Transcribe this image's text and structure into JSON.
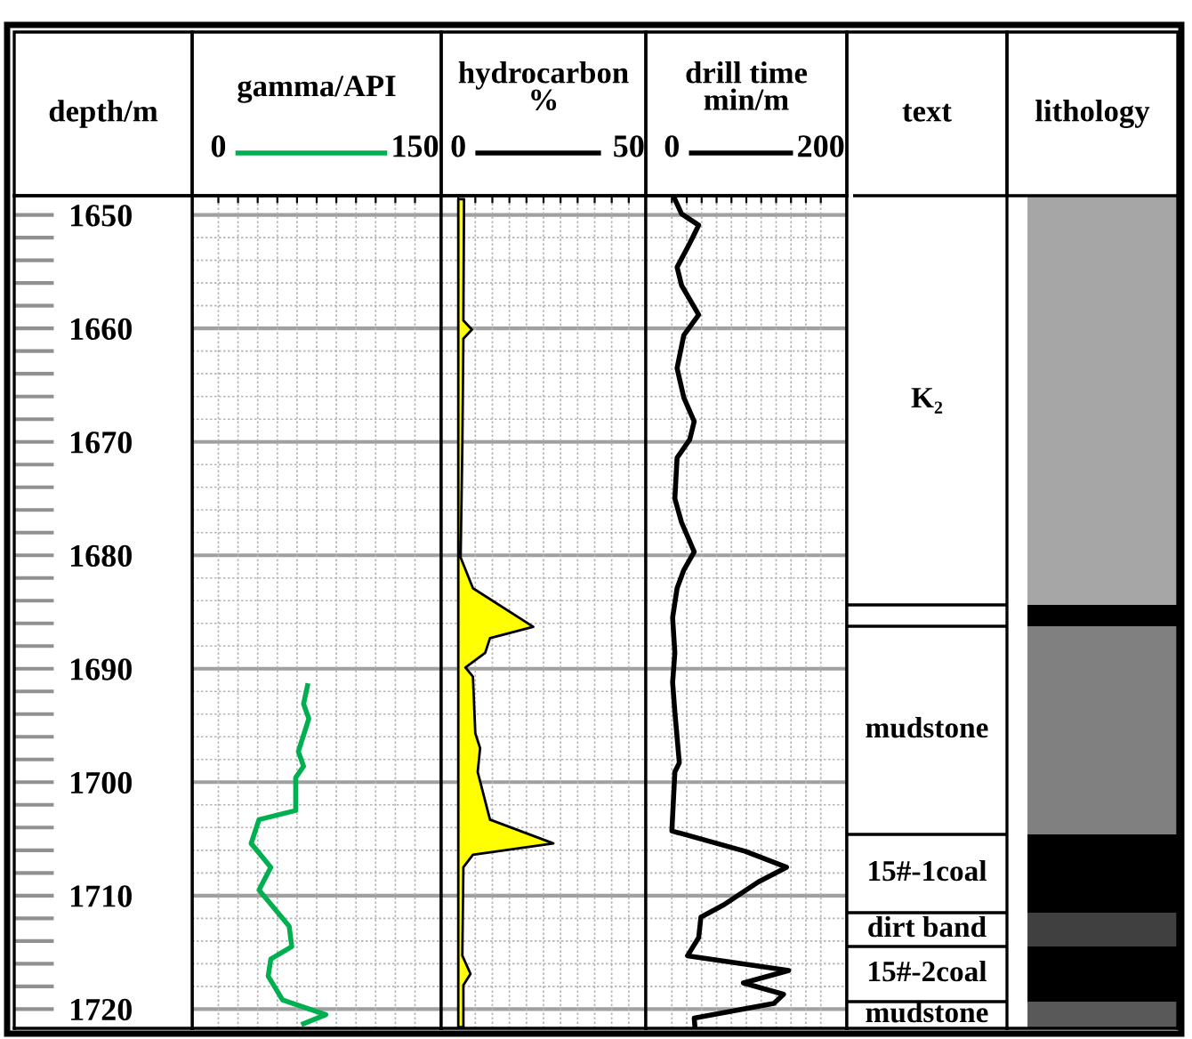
{
  "chart_data": [
    {
      "type": "line",
      "orientation": "horizontal",
      "xlabel": "gamma/API",
      "ylabel": "depth/m",
      "xlim": [
        -20,
        170
      ],
      "xticks": [
        0,
        {
          "value": 15,
          "label": null
        },
        {
          "value": 30,
          "label": null
        },
        {
          "value": 45,
          "label": null
        },
        {
          "value": 60,
          "label": null
        },
        {
          "value": 75,
          "label": null
        },
        {
          "value": 90,
          "label": null
        },
        {
          "value": 105,
          "label": null
        },
        {
          "value": 120,
          "label": null
        },
        {
          "value": 135,
          "label": null
        },
        150
      ],
      "ylim": [
        1721.7,
        1648.3
      ],
      "yticks": [
        1650,
        {
          "value": 1652,
          "label": null
        },
        {
          "value": 1654,
          "label": null
        },
        {
          "value": 1656,
          "label": null
        },
        {
          "value": 1658,
          "label": null
        },
        1660,
        {
          "value": 1662,
          "label": null
        },
        {
          "value": 1664,
          "label": null
        },
        {
          "value": 1666,
          "label": null
        },
        {
          "value": 1668,
          "label": null
        },
        1670,
        {
          "value": 1672,
          "label": null
        },
        {
          "value": 1674,
          "label": null
        },
        {
          "value": 1676,
          "label": null
        },
        {
          "value": 1678,
          "label": null
        },
        1680,
        {
          "value": 1682,
          "label": null
        },
        {
          "value": 1684,
          "label": null
        },
        {
          "value": 1686,
          "label": null
        },
        {
          "value": 1688,
          "label": null
        },
        1690,
        {
          "value": 1692,
          "label": null
        },
        {
          "value": 1694,
          "label": null
        },
        {
          "value": 1696,
          "label": null
        },
        {
          "value": 1698,
          "label": null
        },
        1700,
        {
          "value": 1702,
          "label": null
        },
        {
          "value": 1704,
          "label": null
        },
        {
          "value": 1706,
          "label": null
        },
        {
          "value": 1708,
          "label": null
        },
        1710,
        {
          "value": 1712,
          "label": null
        },
        {
          "value": 1714,
          "label": null
        },
        {
          "value": 1716,
          "label": null
        },
        {
          "value": 1718,
          "label": null
        },
        1720
      ],
      "grid": true,
      "series": [
        {
          "color": "#00b050",
          "x": [
            1691.5,
            1693.1,
            1694.4,
            1697.3,
            1698.6,
            1699.6,
            1702.5,
            1703.3,
            1705.4,
            1707.5,
            1709.5,
            1712.7,
            1714.5,
            1715.6,
            1717.1,
            1719.2,
            1720.5,
            1721.3
          ],
          "values": [
            68,
            65,
            69,
            61,
            65,
            59,
            59,
            31,
            25,
            40,
            31,
            54,
            56,
            40,
            38,
            49,
            82,
            65
          ]
        }
      ]
    },
    {
      "type": "area",
      "orientation": "horizontal",
      "xlabel": "hydrocarbon\n%",
      "tick_labels": "x",
      "xlim": [
        -5,
        55
      ],
      "xticks": [
        0,
        {
          "value": 5,
          "label": null
        },
        {
          "value": 10,
          "label": null
        },
        {
          "value": 15,
          "label": null
        },
        {
          "value": 20,
          "label": null
        },
        {
          "value": 25,
          "label": null
        },
        {
          "value": 30,
          "label": null
        },
        {
          "value": 35,
          "label": null
        },
        {
          "value": 40,
          "label": null
        },
        {
          "value": 45,
          "label": null
        },
        50
      ],
      "ylim": [
        1721.7,
        1648.3
      ],
      "yticks": [
        1650,
        {
          "value": 1652,
          "label": null
        },
        {
          "value": 1654,
          "label": null
        },
        {
          "value": 1656,
          "label": null
        },
        {
          "value": 1658,
          "label": null
        },
        1660,
        {
          "value": 1662,
          "label": null
        },
        {
          "value": 1664,
          "label": null
        },
        {
          "value": 1666,
          "label": null
        },
        {
          "value": 1668,
          "label": null
        },
        1670,
        {
          "value": 1672,
          "label": null
        },
        {
          "value": 1674,
          "label": null
        },
        {
          "value": 1676,
          "label": null
        },
        {
          "value": 1678,
          "label": null
        },
        1680,
        {
          "value": 1682,
          "label": null
        },
        {
          "value": 1684,
          "label": null
        },
        {
          "value": 1686,
          "label": null
        },
        {
          "value": 1688,
          "label": null
        },
        1690,
        {
          "value": 1692,
          "label": null
        },
        {
          "value": 1694,
          "label": null
        },
        {
          "value": 1696,
          "label": null
        },
        {
          "value": 1698,
          "label": null
        },
        1700,
        {
          "value": 1702,
          "label": null
        },
        {
          "value": 1704,
          "label": null
        },
        {
          "value": 1706,
          "label": null
        },
        {
          "value": 1708,
          "label": null
        },
        1710,
        {
          "value": 1712,
          "label": null
        },
        {
          "value": 1714,
          "label": null
        },
        {
          "value": 1716,
          "label": null
        },
        {
          "value": 1718,
          "label": null
        },
        1720
      ],
      "grid": true,
      "series": [
        {
          "color": "#ffff00",
          "x": [
            1648.6,
            1659.3,
            1660.1,
            1660.9,
            1670.3,
            1680.2,
            1682.9,
            1686.3,
            1687.3,
            1688.6,
            1689.9,
            1690.7,
            1695.7,
            1697,
            1699.1,
            1703.3,
            1705.4,
            1706.4,
            1707.5,
            1715.3,
            1716.9,
            1717.9,
            1721.6
          ],
          "values": [
            1.7,
            1.5,
            4,
            1.5,
            1.2,
            0.7,
            4.3,
            22,
            9.3,
            7.9,
            2.1,
            4.3,
            5,
            6.4,
            5.7,
            9.3,
            27.9,
            4.3,
            1.5,
            1.2,
            3.6,
            1.5,
            1.5
          ]
        }
      ]
    },
    {
      "type": "line",
      "orientation": "horizontal",
      "xlabel": "drill time\nmin/m",
      "tick_labels": "x",
      "xlim": [
        -35,
        235
      ],
      "xticks": [
        0,
        {
          "value": 20,
          "label": null
        },
        {
          "value": 40,
          "label": null
        },
        {
          "value": 60,
          "label": null
        },
        {
          "value": 80,
          "label": null
        },
        {
          "value": 100,
          "label": null
        },
        {
          "value": 120,
          "label": null
        },
        {
          "value": 140,
          "label": null
        },
        {
          "value": 160,
          "label": null
        },
        {
          "value": 180,
          "label": null
        },
        200
      ],
      "ylim": [
        1721.7,
        1648.3
      ],
      "yticks": [
        1650,
        {
          "value": 1652,
          "label": null
        },
        {
          "value": 1654,
          "label": null
        },
        {
          "value": 1656,
          "label": null
        },
        {
          "value": 1658,
          "label": null
        },
        1660,
        {
          "value": 1662,
          "label": null
        },
        {
          "value": 1664,
          "label": null
        },
        {
          "value": 1666,
          "label": null
        },
        {
          "value": 1668,
          "label": null
        },
        1670,
        {
          "value": 1672,
          "label": null
        },
        {
          "value": 1674,
          "label": null
        },
        {
          "value": 1676,
          "label": null
        },
        {
          "value": 1678,
          "label": null
        },
        1680,
        {
          "value": 1682,
          "label": null
        },
        {
          "value": 1684,
          "label": null
        },
        {
          "value": 1686,
          "label": null
        },
        {
          "value": 1688,
          "label": null
        },
        1690,
        {
          "value": 1692,
          "label": null
        },
        {
          "value": 1694,
          "label": null
        },
        {
          "value": 1696,
          "label": null
        },
        {
          "value": 1698,
          "label": null
        },
        1700,
        {
          "value": 1702,
          "label": null
        },
        {
          "value": 1704,
          "label": null
        },
        {
          "value": 1706,
          "label": null
        },
        {
          "value": 1708,
          "label": null
        },
        1710,
        {
          "value": 1712,
          "label": null
        },
        {
          "value": 1714,
          "label": null
        },
        {
          "value": 1716,
          "label": null
        },
        {
          "value": 1718,
          "label": null
        },
        1720
      ],
      "grid": true,
      "series": [
        {
          "color": "#000000",
          "x": [
            1648.6,
            1649.9,
            1650.9,
            1652.5,
            1654.6,
            1656.2,
            1658.8,
            1660.6,
            1663.5,
            1666.1,
            1668.2,
            1669.8,
            1671.4,
            1675,
            1677.1,
            1679.7,
            1681.3,
            1682.9,
            1685.5,
            1688.6,
            1691.2,
            1693.8,
            1698.3,
            1699.1,
            1704.3,
            1706.1,
            1707.5,
            1708.8,
            1710.8,
            1711.9,
            1713.7,
            1715.3,
            1716.6,
            1717.7,
            1718.7,
            1719.5,
            1720.8,
            1721.6
          ],
          "values": [
            4,
            13,
            36,
            24,
            7,
            13,
            36,
            16,
            7,
            16,
            30,
            24,
            7,
            4,
            13,
            30,
            16,
            7,
            1,
            4,
            1,
            4,
            10,
            4,
            0,
            99,
            154,
            116,
            70,
            39,
            36,
            21,
            157,
            96,
            150,
            137,
            30,
            31
          ]
        }
      ]
    },
    {
      "type": "other",
      "xlabel": "text",
      "annotations": [
        "K₂",
        "mudstone",
        "15#-1coal",
        "dirt band",
        "15#-2coal",
        "mudstone"
      ]
    },
    {
      "type": "other",
      "xlabel": "lithology"
    }
  ]
}
